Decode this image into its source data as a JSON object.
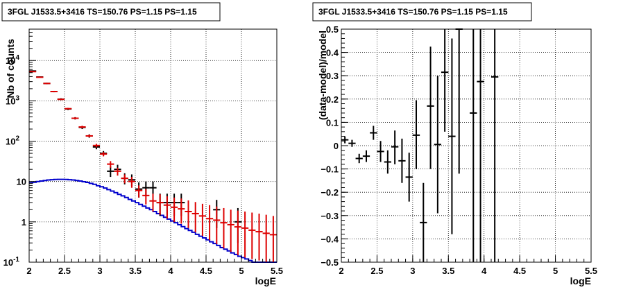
{
  "chart_data": [
    {
      "type": "scatter",
      "title": "3FGL J1533.5+3416 TS=150.76 PS=1.15 PS=1.15",
      "xlabel": "logE",
      "ylabel": "Nb of counts",
      "xlim": [
        2,
        5.5
      ],
      "ylim": [
        0.1,
        60000
      ],
      "yscale": "log",
      "grid": true,
      "x_ticks": [
        "2",
        "2.5",
        "3",
        "3.5",
        "4",
        "4.5",
        "5",
        "5.5"
      ],
      "y_ticks": [
        {
          "label": "10",
          "sup": "-1",
          "value": 0.1
        },
        {
          "label": "1",
          "sup": "",
          "value": 1
        },
        {
          "label": "10",
          "sup": "",
          "value": 10
        },
        {
          "label": "10",
          "sup": "2",
          "value": 100
        },
        {
          "label": "10",
          "sup": "3",
          "value": 1000
        },
        {
          "label": "10",
          "sup": "4",
          "value": 10000
        }
      ],
      "series": [
        {
          "color": "#000000",
          "xerr": 0.05,
          "x": [
            2.05,
            2.15,
            2.25,
            2.35,
            2.45,
            2.55,
            2.65,
            2.75,
            2.85,
            2.95,
            3.05,
            3.15,
            3.25,
            3.35,
            3.45,
            3.55,
            3.65,
            3.75,
            3.85,
            3.95,
            4.05,
            4.15,
            4.25,
            4.35,
            4.45,
            4.55,
            4.65,
            4.75,
            4.85,
            4.95
          ],
          "y": [
            5500,
            3900,
            2700,
            1700,
            1100,
            630,
            370,
            220,
            135,
            72,
            50,
            18,
            20,
            12,
            11,
            6.5,
            7,
            7,
            3,
            3,
            3,
            3,
            null,
            null,
            null,
            null,
            2,
            null,
            null,
            1
          ],
          "ylow": [
            5300,
            3750,
            2600,
            1630,
            1040,
            590,
            345,
            200,
            122,
            63,
            43,
            13,
            14.5,
            8.5,
            7.8,
            4,
            4.5,
            4.5,
            1.4,
            1.4,
            1.4,
            1.4,
            null,
            null,
            null,
            null,
            0.7,
            null,
            null,
            0.3
          ],
          "yhigh": [
            5700,
            4050,
            2800,
            1770,
            1160,
            670,
            395,
            240,
            148,
            81,
            57,
            24,
            26,
            16,
            15,
            9.5,
            10,
            10,
            5,
            5,
            5,
            5,
            null,
            null,
            null,
            null,
            3.5,
            null,
            null,
            2.2
          ]
        },
        {
          "color": "#dd0000",
          "xerr": 0.05,
          "x": [
            2.05,
            2.15,
            2.25,
            2.35,
            2.45,
            2.55,
            2.65,
            2.75,
            2.85,
            2.95,
            3.05,
            3.15,
            3.25,
            3.35,
            3.45,
            3.55,
            3.65,
            3.75,
            3.85,
            3.95,
            4.05,
            4.15,
            4.25,
            4.35,
            4.45,
            4.55,
            4.65,
            4.75,
            4.85,
            4.95,
            5.05,
            5.15,
            5.25,
            5.35,
            5.45
          ],
          "y": [
            5300,
            3850,
            2700,
            1700,
            1090,
            640,
            370,
            225,
            135,
            78,
            48,
            27,
            18,
            12,
            10,
            6,
            4.5,
            3.3,
            3,
            2.6,
            2.3,
            2.1,
            1.8,
            1.6,
            1.4,
            1.2,
            1.1,
            0.95,
            0.85,
            0.75,
            0.7,
            0.62,
            0.57,
            0.52,
            0.48
          ],
          "ylow": [
            5150,
            3750,
            2620,
            1650,
            1050,
            610,
            350,
            210,
            125,
            70,
            42,
            22,
            14,
            9,
            7,
            4,
            2.7,
            1.8,
            1.5,
            1.2,
            1.0,
            0.9,
            0.7,
            0.55,
            0.45,
            0.35,
            0.28,
            0.22,
            0.18,
            0.15,
            0.13,
            0.12,
            0.11,
            0.1,
            0.1
          ],
          "yhigh": [
            5450,
            3950,
            2780,
            1750,
            1130,
            670,
            390,
            240,
            145,
            86,
            54,
            32,
            22,
            15,
            13,
            8,
            6.5,
            5,
            4.8,
            4.3,
            4,
            3.8,
            3.4,
            3.1,
            2.8,
            2.6,
            2.4,
            2.2,
            2,
            1.9,
            1.8,
            1.7,
            1.6,
            1.5,
            1.4
          ]
        }
      ],
      "model": {
        "color": "#0000cc",
        "edges": [
          2.0,
          2.05,
          2.1,
          2.15,
          2.2,
          2.25,
          2.3,
          2.35,
          2.4,
          2.45,
          2.5,
          2.55,
          2.6,
          2.65,
          2.7,
          2.75,
          2.8,
          2.85,
          2.9,
          2.95,
          3.0,
          3.05,
          3.1,
          3.15,
          3.2,
          3.25,
          3.3,
          3.35,
          3.4,
          3.45,
          3.5,
          3.55,
          3.6,
          3.65,
          3.7,
          3.75,
          3.8,
          3.85,
          3.9,
          3.95,
          4.0,
          4.05,
          4.1,
          4.15,
          4.2,
          4.25,
          4.3,
          4.35,
          4.4,
          4.45,
          4.5,
          4.55,
          4.6,
          4.65,
          4.7,
          4.75,
          4.8,
          4.85,
          4.9,
          4.95,
          5.0,
          5.05,
          5.1,
          5.15,
          5.2,
          5.25,
          5.3,
          5.35,
          5.4,
          5.45,
          5.5
        ],
        "values": [
          9.3,
          9.6,
          10.0,
          10.3,
          10.6,
          10.9,
          11.1,
          11.2,
          11.3,
          11.3,
          11.2,
          11.1,
          10.9,
          10.6,
          10.3,
          9.9,
          9.5,
          9.0,
          8.5,
          7.9,
          7.4,
          6.9,
          6.3,
          5.8,
          5.3,
          4.8,
          4.4,
          4.0,
          3.6,
          3.3,
          3.0,
          2.7,
          2.45,
          2.2,
          2.0,
          1.8,
          1.6,
          1.45,
          1.3,
          1.17,
          1.05,
          0.95,
          0.85,
          0.76,
          0.68,
          0.61,
          0.55,
          0.49,
          0.44,
          0.4,
          0.36,
          0.32,
          0.29,
          0.26,
          0.23,
          0.21,
          0.19,
          0.17,
          0.155,
          0.14,
          0.13,
          0.12,
          0.11,
          0.1,
          0.095,
          0.09,
          0.085,
          0.08,
          0.075,
          0.07
        ]
      }
    },
    {
      "type": "scatter",
      "title": "3FGL J1533.5+3416 TS=150.76 PS=1.15 PS=1.15",
      "xlabel": "logE",
      "ylabel": "(data-model)/model",
      "xlim": [
        2,
        5.5
      ],
      "ylim": [
        -0.5,
        0.5
      ],
      "grid": true,
      "x_ticks": [
        "2",
        "2.5",
        "3",
        "3.5",
        "4",
        "4.5",
        "5",
        "5.5"
      ],
      "y_ticks": [
        "−0.5",
        "−0.4",
        "−0.3",
        "−0.2",
        "−0.1",
        "0",
        "0.1",
        "0.2",
        "0.3",
        "0.4",
        "0.5"
      ],
      "series": [
        {
          "color": "#000000",
          "xerr": 0.05,
          "x": [
            2.05,
            2.15,
            2.25,
            2.35,
            2.45,
            2.55,
            2.65,
            2.75,
            2.85,
            2.95,
            3.05,
            3.15,
            3.25,
            3.35,
            3.45,
            3.55,
            3.65,
            3.85,
            3.95,
            4.15
          ],
          "y": [
            0.025,
            0.01,
            -0.055,
            -0.045,
            0.055,
            -0.025,
            -0.07,
            -0.005,
            -0.065,
            -0.135,
            0.045,
            -0.33,
            0.17,
            0.005,
            0.315,
            0.04,
            0.5,
            0.14,
            0.275,
            0.295
          ],
          "ylow": [
            0.01,
            -0.005,
            -0.075,
            -0.07,
            0.025,
            -0.07,
            -0.12,
            -0.08,
            -0.16,
            -0.24,
            -0.1,
            -0.5,
            -0.1,
            -0.29,
            0.06,
            -0.38,
            -0.12,
            -0.5,
            -0.5,
            -0.5
          ],
          "yhigh": [
            0.04,
            0.025,
            -0.035,
            -0.02,
            0.085,
            0.02,
            -0.02,
            0.065,
            0.03,
            -0.03,
            0.195,
            -0.16,
            0.425,
            0.3,
            0.55,
            0.46,
            0.55,
            0.55,
            0.55,
            0.55
          ]
        }
      ]
    }
  ]
}
